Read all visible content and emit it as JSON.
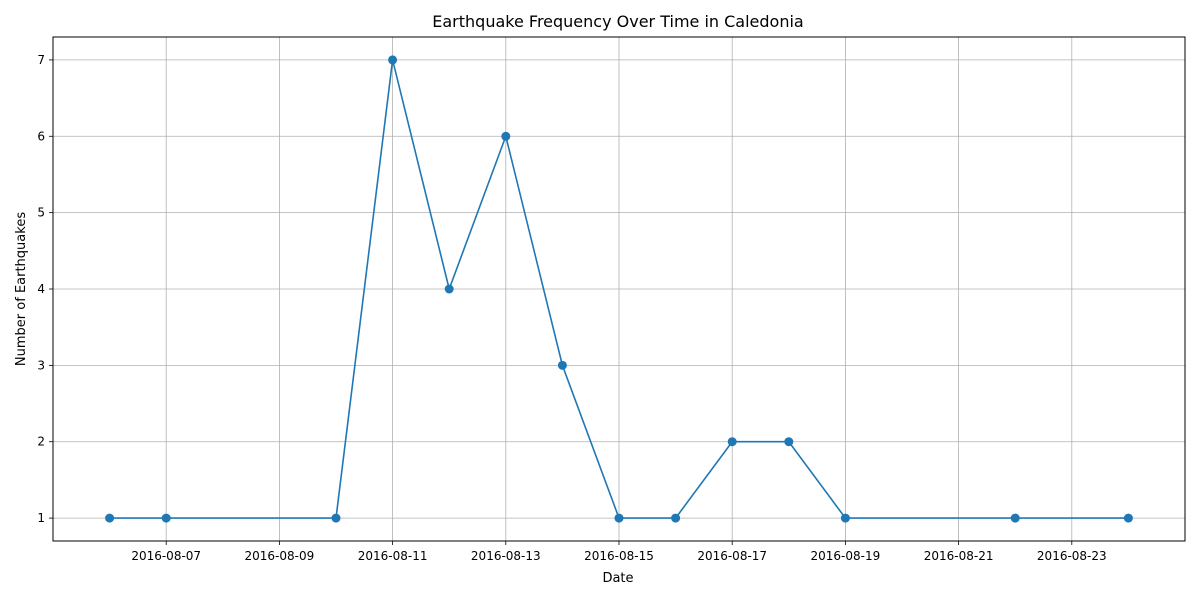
{
  "chart_data": {
    "type": "line",
    "title": "Earthquake Frequency Over Time in Caledonia",
    "xlabel": "Date",
    "ylabel": "Number of Earthquakes",
    "x_tick_labels": [
      "2016-08-07",
      "2016-08-09",
      "2016-08-11",
      "2016-08-13",
      "2016-08-15",
      "2016-08-17",
      "2016-08-19",
      "2016-08-21",
      "2016-08-23"
    ],
    "y_tick_labels": [
      "1",
      "2",
      "3",
      "4",
      "5",
      "6",
      "7"
    ],
    "xlim": [
      "2016-08-05",
      "2016-08-25"
    ],
    "ylim": [
      0.7,
      7.3
    ],
    "grid": true,
    "series": [
      {
        "color": "#1f77b4",
        "marker": "circle",
        "points": [
          {
            "x": "2016-08-06",
            "y": 1
          },
          {
            "x": "2016-08-07",
            "y": 1
          },
          {
            "x": "2016-08-10",
            "y": 1
          },
          {
            "x": "2016-08-11",
            "y": 7
          },
          {
            "x": "2016-08-12",
            "y": 4
          },
          {
            "x": "2016-08-13",
            "y": 6
          },
          {
            "x": "2016-08-14",
            "y": 3
          },
          {
            "x": "2016-08-15",
            "y": 1
          },
          {
            "x": "2016-08-16",
            "y": 1
          },
          {
            "x": "2016-08-17",
            "y": 2
          },
          {
            "x": "2016-08-18",
            "y": 2
          },
          {
            "x": "2016-08-19",
            "y": 1
          },
          {
            "x": "2016-08-22",
            "y": 1
          },
          {
            "x": "2016-08-24",
            "y": 1
          }
        ]
      }
    ]
  }
}
